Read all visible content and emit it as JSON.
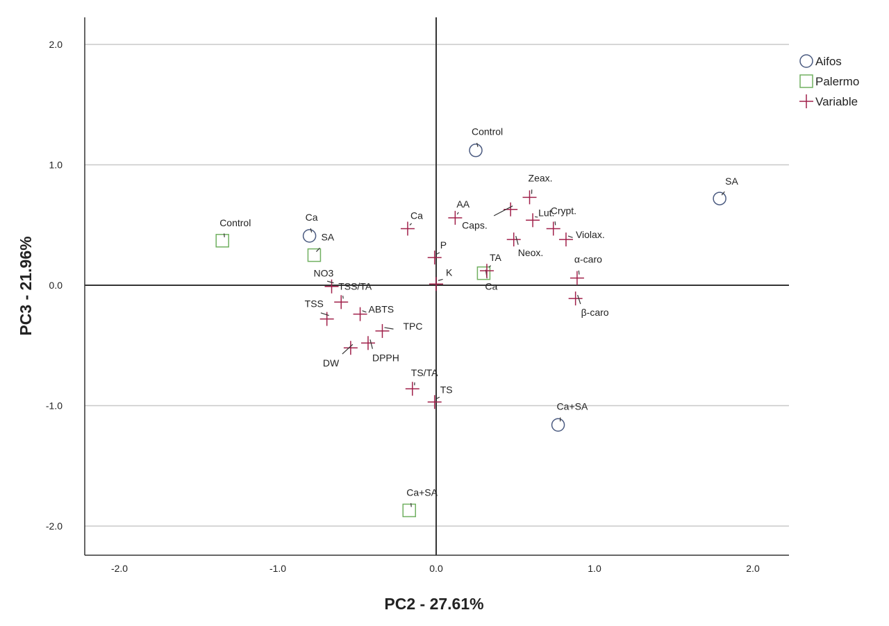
{
  "chart_data": {
    "type": "scatter",
    "title": "",
    "xlabel": "PC2 - 27.61%",
    "ylabel": "PC3 - 21.96%",
    "xlim": [
      -2.2,
      2.25
    ],
    "ylim": [
      -2.25,
      2.2
    ],
    "xticks": [
      -2.0,
      -1.0,
      0.0,
      1.0,
      2.0
    ],
    "yticks": [
      -2.0,
      -1.0,
      0.0,
      1.0,
      2.0
    ],
    "xtick_labels": [
      "-2.0",
      "-1.0",
      "0.0",
      "1.0",
      "2.0"
    ],
    "ytick_labels": [
      "-2.0",
      "-1.0",
      "0.0",
      "1.0",
      "2.0"
    ],
    "grid": "horizontal",
    "legend_position": "top-right",
    "colors": {
      "Aifos": "#4a5a80",
      "Palermo": "#70b060",
      "Variable": "#a0204a"
    },
    "series": [
      {
        "name": "Aifos",
        "marker": "circle",
        "points": [
          {
            "label": "Control",
            "x": 0.25,
            "y": 1.12
          },
          {
            "label": "SA",
            "x": 1.79,
            "y": 0.72
          },
          {
            "label": "Ca",
            "x": -0.8,
            "y": 0.41
          },
          {
            "label": "Ca+SA",
            "x": 0.77,
            "y": -1.16
          }
        ]
      },
      {
        "name": "Palermo",
        "marker": "square",
        "points": [
          {
            "label": "Control",
            "x": -1.35,
            "y": 0.37
          },
          {
            "label": "SA",
            "x": -0.77,
            "y": 0.25
          },
          {
            "label": "Ca",
            "x": 0.3,
            "y": 0.1
          },
          {
            "label": "Ca+SA",
            "x": -0.17,
            "y": -1.87
          }
        ]
      },
      {
        "name": "Variable",
        "marker": "plus",
        "points": [
          {
            "label": "Ca",
            "x": -0.18,
            "y": 0.47
          },
          {
            "label": "AA",
            "x": 0.12,
            "y": 0.56
          },
          {
            "label": "P",
            "x": -0.01,
            "y": 0.23
          },
          {
            "label": "K",
            "x": 0.0,
            "y": 0.01
          },
          {
            "label": "NO3",
            "x": -0.66,
            "y": -0.01
          },
          {
            "label": "TSS/TA",
            "x": -0.6,
            "y": -0.14
          },
          {
            "label": "TSS",
            "x": -0.69,
            "y": -0.28
          },
          {
            "label": "ABTS",
            "x": -0.48,
            "y": -0.24
          },
          {
            "label": "TPC",
            "x": -0.34,
            "y": -0.38
          },
          {
            "label": "DPPH",
            "x": -0.43,
            "y": -0.48
          },
          {
            "label": "DW",
            "x": -0.54,
            "y": -0.52
          },
          {
            "label": "TS/TA",
            "x": -0.15,
            "y": -0.86
          },
          {
            "label": "TS",
            "x": -0.01,
            "y": -0.97
          },
          {
            "label": "Caps.",
            "x": 0.47,
            "y": 0.63
          },
          {
            "label": "Zeax.",
            "x": 0.59,
            "y": 0.73
          },
          {
            "label": "Lut.",
            "x": 0.61,
            "y": 0.54
          },
          {
            "label": "Neox.",
            "x": 0.49,
            "y": 0.38
          },
          {
            "label": "Crypt.",
            "x": 0.74,
            "y": 0.47
          },
          {
            "label": "Violax.",
            "x": 0.82,
            "y": 0.38
          },
          {
            "label": "TA",
            "x": 0.32,
            "y": 0.12
          },
          {
            "label": "α-caro",
            "x": 0.89,
            "y": 0.06
          },
          {
            "label": "β-caro",
            "x": 0.88,
            "y": -0.11
          }
        ]
      }
    ]
  }
}
